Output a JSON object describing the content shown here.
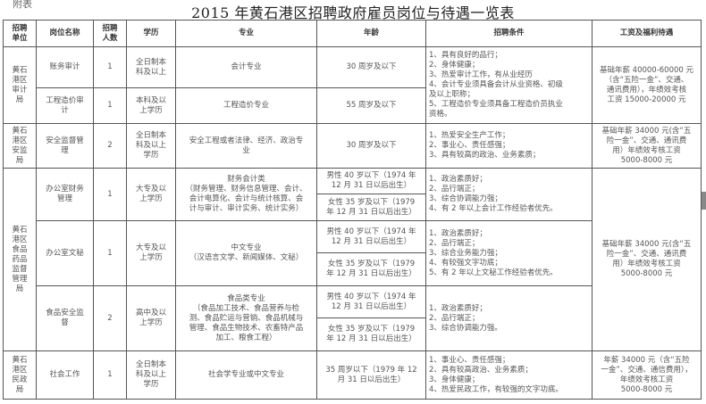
{
  "note": "附表",
  "title": "2015 年黄石港区招聘政府雇员岗位与待遇一览表",
  "headers": [
    "招聘\n单位",
    "岗位名称",
    "招聘\n人数",
    "学历",
    "专业",
    "年龄",
    "招聘条件",
    "工资及福利待遇"
  ],
  "units": [
    "黄石\n港区\n审计\n局",
    "黄石\n港区\n安监\n局",
    "黄石\n港区\n食品\n药品\n监督\n管理\n局",
    "黄石\n港区\n民政\n局"
  ],
  "rows": [
    {
      "post": "账务审计",
      "count": "1",
      "edu": "全日制本\n科及以上",
      "major": "会计专业",
      "age": "30 周岁及以下"
    },
    {
      "post": "工程造价审\n计",
      "count": "1",
      "edu": "本科及以\n上学历",
      "major": "工程造价专业",
      "age": "55 周岁及以下"
    },
    {
      "post": "安全监督管\n理",
      "count": "2",
      "edu": "全日制本\n科及以上\n学历",
      "major": "安全工程或者法律、经济、政治专\n业",
      "age": "30 周岁及以下"
    },
    {
      "post": "办公室财务\n管理",
      "count": "1",
      "edu": "大专及以\n上学历",
      "major": "财务会计类\n（财务管理、财务信息管理、会计、\n会计电算化、会计与统计核算、会\n计与审计、审计实务、统计实务）",
      "age_m": "男性 40 岁以下（1974 年\n12 月 31 日以后出生）",
      "age_f": "女性 35 岁及以下（1979\n年 12 月 31 日以后出生）"
    },
    {
      "post": "办公室文秘",
      "count": "1",
      "edu": "大专及以\n上学历",
      "major": "中文专业\n（汉语言文学、新闻媒体、文秘）",
      "age_m": "男性 40 岁以下（1974 年\n12 月 31 日以后出生）",
      "age_f": "女性 35 岁及以下（1979\n年 12 月 31 日以后出生）"
    },
    {
      "post": "食品安全监\n督",
      "count": "2",
      "edu": "高中及以\n上学历",
      "major": "食品类专业\n（食品加工技术、食品营养与检\n测、食品贮运与营销、食品机械与\n管理、食品生物技术、农畜特产品\n加工、粮食工程）",
      "age_m": "男性 40 岁以下（1974 年\n12 月 31 日以后出生）",
      "age_f": "女性 35 岁及以下（1979\n年 12 月 31 日以后出生）"
    },
    {
      "post": "社会工作",
      "count": "1",
      "edu": "全日制本\n科及以上\n学历",
      "major": "社会学专业或中文专业",
      "age": "35 周岁以下（1979 年 12\n月 31 日以后出生）"
    }
  ],
  "conditions": [
    "1、具有良好的品行；\n2、身体健康；\n3、热爱审计工作，有从业经历\n4、会计专业须具备会计从业资格、初级\n    及以上职称；\n5、工程造价专业须具备工程造价员执业\n    资格。",
    "1、热爱安全生产工作；\n2、事业心、责任感强；\n3、具有较高的政治、业务素质；",
    "1、政治素质好；\n2、品行端正；\n3、综合协调能力强；\n4、有 2 年以上会计工作经验者优先。",
    "1、政治素质好；\n2、品行端正；\n3、综合业务能力强；\n4、有较强文字功底；\n5、有 2 年以上文秘工作经验者优先。",
    "1、政治素质好；\n2、品行端正；\n3、综合协调能力强。",
    "1、事业心、责任感强；\n2、具有较高政治、业务素质；\n3、身体健康；\n4、热爱民政工作，有较强的文字功底。"
  ],
  "salaries": [
    "基础年薪 40000-60000 元\n（含“五险一金”、交通、\n通讯费用），年绩效考核\n工资 15000-20000 元",
    "基础年薪 34000 元(含“五\n险一金”、交通、通讯费\n用）年绩效考核工资\n5000-8000 元",
    "基础年薪 34000 元(含“五\n险一金”、交通、通讯费\n用）年绩效考核工资\n5000-8000 元",
    "年薪 34000 元（含“五险\n一金”、交通、通信费用），\n年绩效考核工资\n5000-8000 元"
  ]
}
